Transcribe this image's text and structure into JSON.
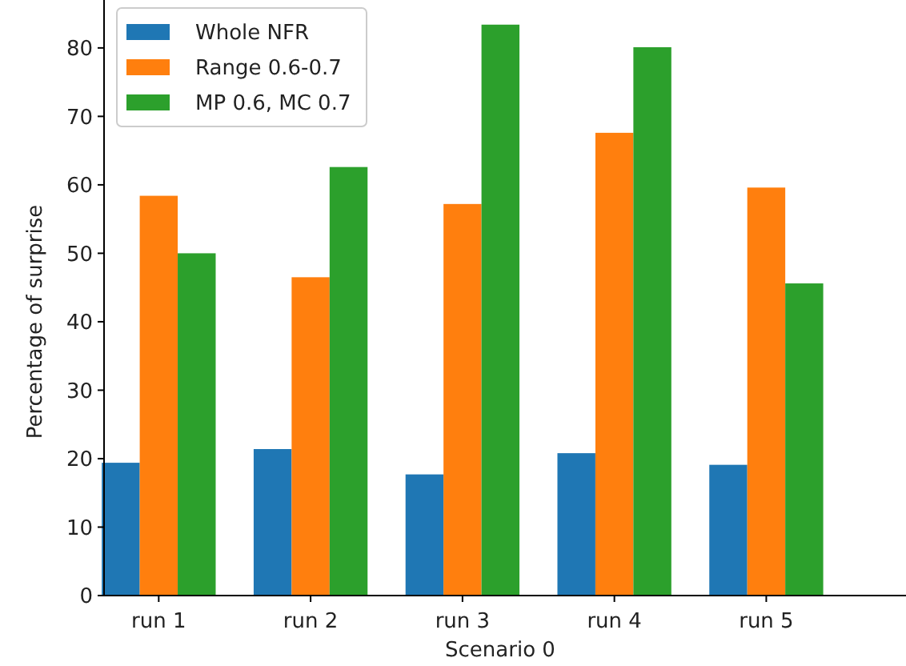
{
  "chart_data": {
    "type": "bar",
    "xlabel": "Scenario 0",
    "ylabel": "Percentage of surprise",
    "categories": [
      "run 1",
      "run 2",
      "run 3",
      "run 4",
      "run 5"
    ],
    "series": [
      {
        "name": "Whole NFR",
        "color": "#1f77b4",
        "values": [
          19.4,
          21.4,
          17.7,
          20.8,
          19.1
        ]
      },
      {
        "name": "Range 0.6-0.7",
        "color": "#ff7f0e",
        "values": [
          58.4,
          46.5,
          57.2,
          67.6,
          59.6
        ]
      },
      {
        "name": "MP 0.6, MC 0.7",
        "color": "#2ca02c",
        "values": [
          50.0,
          62.6,
          83.4,
          80.1,
          45.6
        ]
      }
    ],
    "ylim": [
      0,
      87
    ],
    "yticks": [
      0,
      10,
      20,
      30,
      40,
      50,
      60,
      70,
      80
    ],
    "grid": false,
    "legend": "top left"
  }
}
